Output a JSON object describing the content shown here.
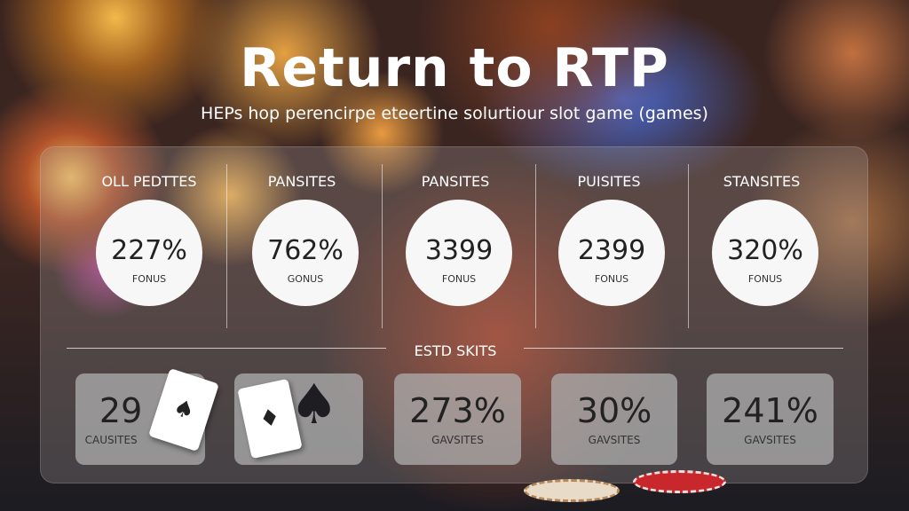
{
  "header": {
    "title": "Return to RTP",
    "subtitle": "HEPs hop perencirpe eteertine solurtiour slot game (games)"
  },
  "columns": [
    {
      "heading": "OLL PEDTTES",
      "value": "227%",
      "label": "FONUS"
    },
    {
      "heading": "PANSITES",
      "value": "762%",
      "label": "GONUS"
    },
    {
      "heading": "PANSITES",
      "value": "3399",
      "label": "FONUS"
    },
    {
      "heading": "PUISITES",
      "value": "2399",
      "label": "FONUS"
    },
    {
      "heading": "STANSITES",
      "value": "320%",
      "label": "FONUS"
    }
  ],
  "section": {
    "title": "ESTD SKITS"
  },
  "cards": [
    {
      "value": "29",
      "label": "CAUSITES"
    },
    {
      "value": "",
      "label": ""
    },
    {
      "value": "273%",
      "label": "GAVSITES"
    },
    {
      "value": "30%",
      "label": "GAVSITES"
    },
    {
      "value": "241%",
      "label": "GAVSITES"
    }
  ],
  "icons": {
    "card": "ace-of-spades-card-icon",
    "spade": "spade-icon",
    "chips": "poker-chip-icon"
  }
}
